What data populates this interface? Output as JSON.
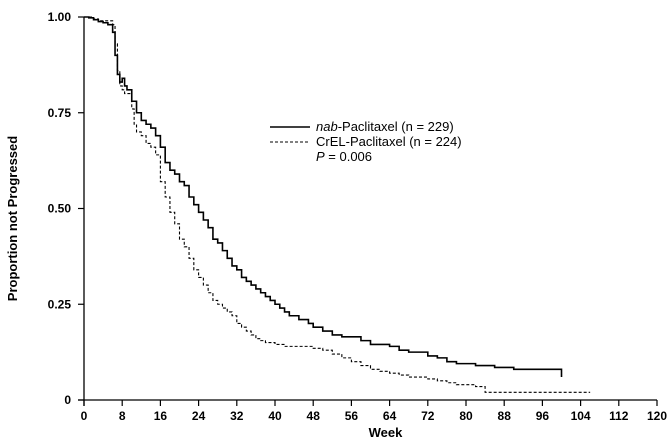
{
  "chart_data": {
    "type": "line",
    "xlabel": "Week",
    "ylabel": "Proportion not Progressed",
    "xlim": [
      0,
      120
    ],
    "ylim": [
      0,
      1.0
    ],
    "x_ticks": [
      0,
      8,
      16,
      24,
      32,
      40,
      48,
      56,
      64,
      72,
      80,
      88,
      96,
      104,
      112,
      120
    ],
    "x_tick_labels": [
      "0",
      "8",
      "16",
      "24",
      "32",
      "40",
      "48",
      "56",
      "64",
      "72",
      "80",
      "88",
      "96",
      "104",
      "112",
      "120"
    ],
    "y_ticks": [
      0,
      0.25,
      0.5,
      0.75,
      1.0
    ],
    "y_tick_labels": [
      "0",
      "0.25",
      "0.50",
      "0.75",
      "1.00"
    ],
    "grid": false,
    "legend_position": "upper-right-center",
    "annotation": {
      "prefix": "P",
      "text": " = 0.006"
    },
    "series": [
      {
        "name_italic": "nab",
        "name_rest": "-Paclitaxel (n = 229)",
        "line_style": "solid",
        "color": "#000000",
        "x": [
          0,
          1,
          2,
          3,
          4,
          5,
          6,
          6.5,
          7,
          7.5,
          8,
          8.5,
          9,
          10,
          11,
          12,
          13,
          14,
          15,
          16,
          17,
          18,
          19,
          20,
          21,
          22,
          23,
          24,
          25,
          26,
          27,
          28,
          29,
          30,
          31,
          32,
          33,
          34,
          35,
          36,
          37,
          38,
          39,
          40,
          41,
          42,
          43,
          44,
          45,
          46,
          47,
          48,
          50,
          52,
          54,
          56,
          58,
          60,
          62,
          64,
          66,
          68,
          70,
          72,
          74,
          76,
          78,
          80,
          82,
          84,
          86,
          88,
          90,
          92,
          94,
          96,
          98,
          100
        ],
        "y": [
          1.0,
          0.998,
          0.993,
          0.988,
          0.985,
          0.98,
          0.96,
          0.9,
          0.85,
          0.83,
          0.84,
          0.82,
          0.81,
          0.78,
          0.75,
          0.73,
          0.72,
          0.71,
          0.69,
          0.66,
          0.62,
          0.6,
          0.59,
          0.57,
          0.56,
          0.53,
          0.51,
          0.49,
          0.47,
          0.45,
          0.42,
          0.41,
          0.39,
          0.37,
          0.35,
          0.34,
          0.32,
          0.31,
          0.3,
          0.29,
          0.28,
          0.27,
          0.26,
          0.25,
          0.24,
          0.23,
          0.22,
          0.22,
          0.21,
          0.21,
          0.2,
          0.19,
          0.18,
          0.17,
          0.165,
          0.165,
          0.155,
          0.145,
          0.145,
          0.14,
          0.13,
          0.125,
          0.125,
          0.115,
          0.11,
          0.1,
          0.095,
          0.095,
          0.09,
          0.09,
          0.085,
          0.085,
          0.08,
          0.08,
          0.08,
          0.08,
          0.08,
          0.06
        ]
      },
      {
        "name_italic": "",
        "name_rest": "CrEL-Paclitaxel (n = 224)",
        "line_style": "dashed",
        "color": "#000000",
        "x": [
          0,
          1,
          2,
          3,
          4,
          5,
          6,
          6.5,
          7,
          7.5,
          8,
          8.5,
          9,
          10,
          10.5,
          11,
          12,
          13,
          14,
          15,
          16,
          17,
          18,
          19,
          20,
          21,
          22,
          23,
          24,
          25,
          26,
          27,
          28,
          29,
          30,
          31,
          32,
          33,
          34,
          35,
          36,
          37,
          38,
          39,
          40,
          42,
          44,
          46,
          48,
          50,
          52,
          54,
          56,
          58,
          60,
          62,
          64,
          66,
          68,
          70,
          72,
          74,
          76,
          78,
          80,
          82,
          84,
          86,
          88,
          92,
          96,
          100,
          104,
          106
        ],
        "y": [
          1.0,
          1.0,
          0.995,
          0.99,
          0.99,
          0.99,
          0.98,
          0.93,
          0.86,
          0.82,
          0.81,
          0.8,
          0.8,
          0.76,
          0.72,
          0.7,
          0.69,
          0.67,
          0.66,
          0.64,
          0.57,
          0.53,
          0.49,
          0.46,
          0.42,
          0.4,
          0.37,
          0.34,
          0.32,
          0.3,
          0.28,
          0.26,
          0.25,
          0.24,
          0.23,
          0.22,
          0.2,
          0.19,
          0.18,
          0.17,
          0.16,
          0.155,
          0.15,
          0.15,
          0.145,
          0.14,
          0.14,
          0.14,
          0.135,
          0.13,
          0.12,
          0.11,
          0.1,
          0.09,
          0.08,
          0.075,
          0.07,
          0.065,
          0.06,
          0.06,
          0.055,
          0.05,
          0.045,
          0.04,
          0.04,
          0.035,
          0.02,
          0.02,
          0.02,
          0.02,
          0.02,
          0.02,
          0.02,
          0.02
        ]
      }
    ]
  }
}
